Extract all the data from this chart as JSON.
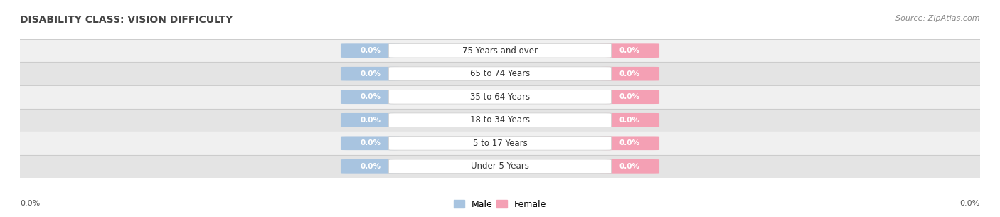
{
  "title": "DISABILITY CLASS: VISION DIFFICULTY",
  "source_text": "Source: ZipAtlas.com",
  "categories": [
    "Under 5 Years",
    "5 to 17 Years",
    "18 to 34 Years",
    "35 to 64 Years",
    "65 to 74 Years",
    "75 Years and over"
  ],
  "male_values": [
    0.0,
    0.0,
    0.0,
    0.0,
    0.0,
    0.0
  ],
  "female_values": [
    0.0,
    0.0,
    0.0,
    0.0,
    0.0,
    0.0
  ],
  "male_color": "#a8c4e0",
  "female_color": "#f4a0b4",
  "male_label": "Male",
  "female_label": "Female",
  "row_bg_colors": [
    "#f0f0f0",
    "#e4e4e4"
  ],
  "title_fontsize": 10,
  "source_fontsize": 8,
  "bottom_label": "0.0%",
  "center_box_color": "#ffffff",
  "center_box_edge": "#cccccc",
  "bar_text_color": "#ffffff",
  "center_text_color": "#333333",
  "title_color": "#444444",
  "source_color": "#888888",
  "bottom_label_color": "#555555"
}
